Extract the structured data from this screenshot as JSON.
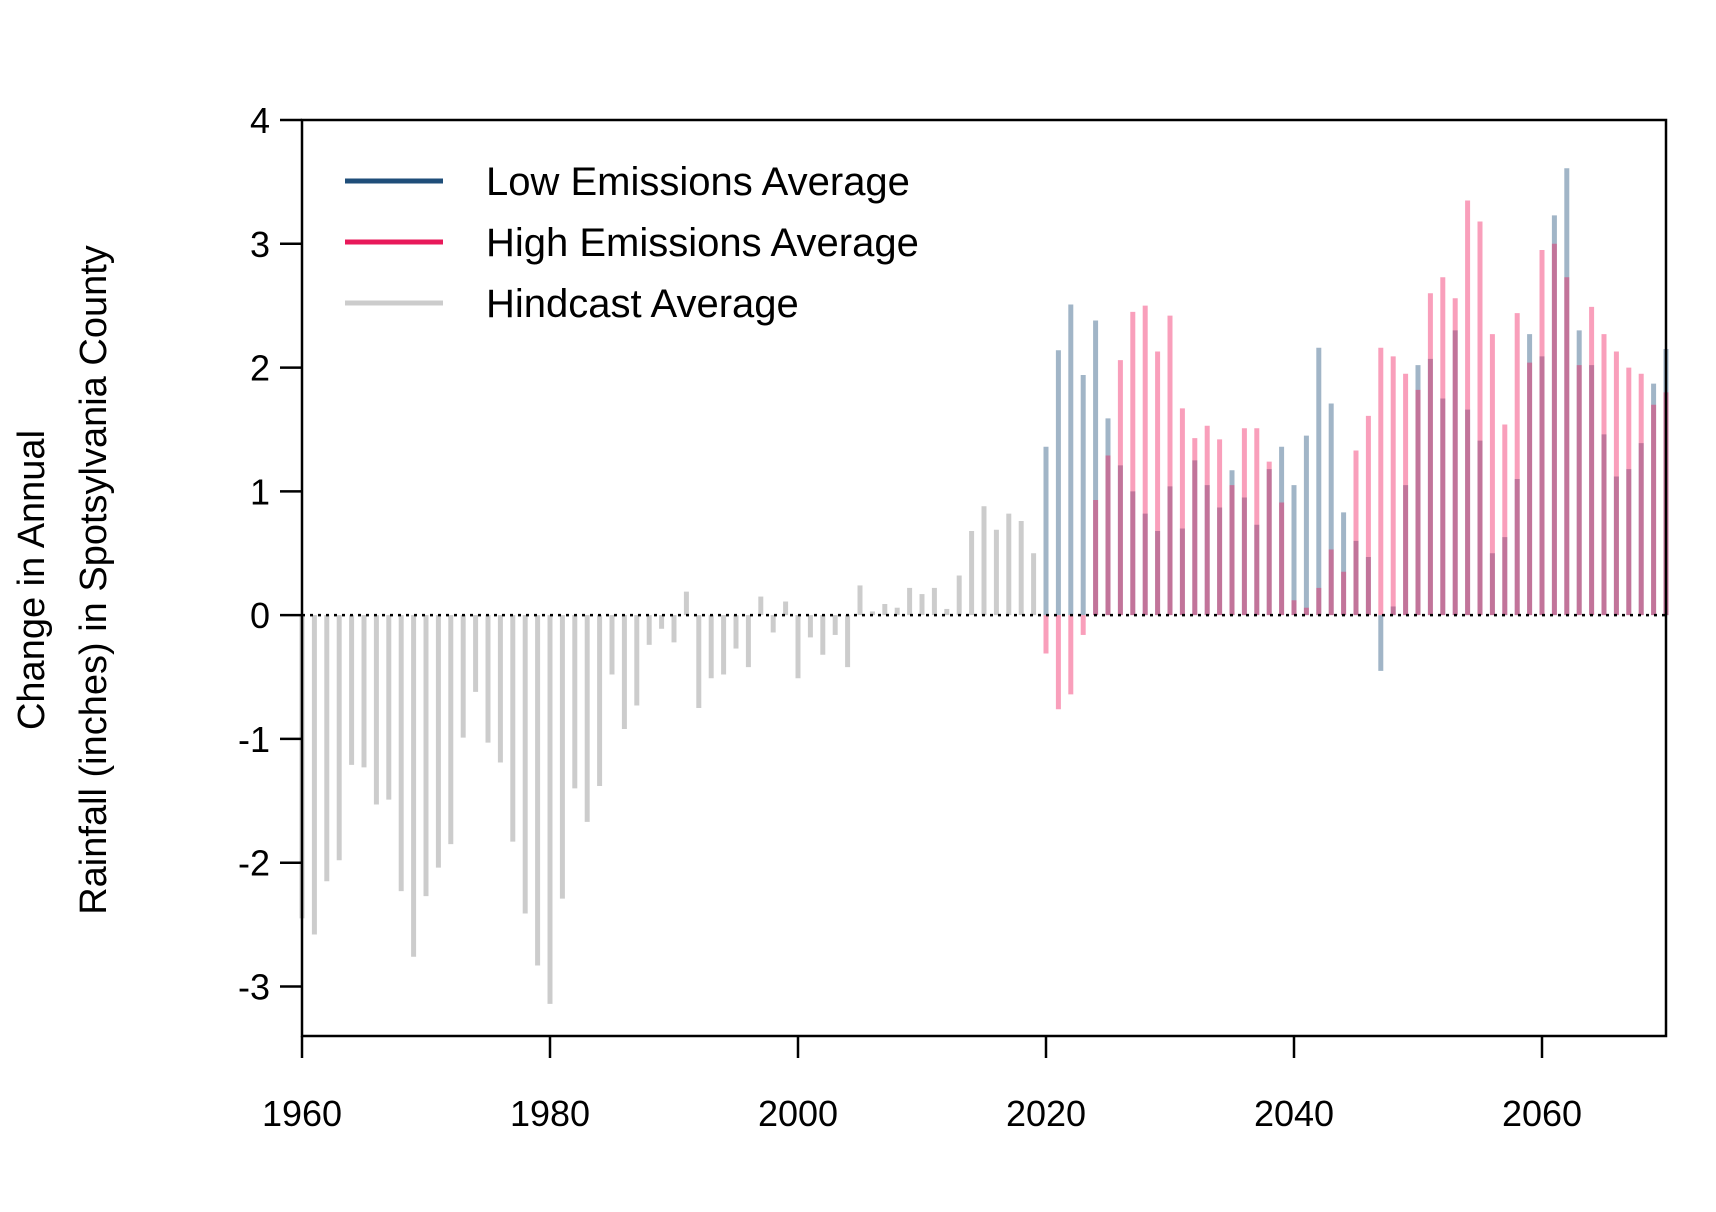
{
  "chart_data": {
    "type": "bar",
    "ylabel_line1": "Change in Annual",
    "ylabel_line2": "Rainfall (inches) in Spotsylvania County",
    "xlim": [
      1960,
      2070
    ],
    "ylim": [
      -3.4,
      4.0
    ],
    "xticks": [
      1960,
      1980,
      2000,
      2020,
      2040,
      2060
    ],
    "yticks": [
      -3,
      -2,
      -1,
      0,
      1,
      2,
      3,
      4
    ],
    "legend_position": "top-left",
    "baseline": 0,
    "series": [
      {
        "name": "Low Emissions Average",
        "color": "#1f4e79",
        "years": [
          2020,
          2021,
          2022,
          2023,
          2024,
          2025,
          2026,
          2027,
          2028,
          2029,
          2030,
          2031,
          2032,
          2033,
          2034,
          2035,
          2036,
          2037,
          2038,
          2039,
          2040,
          2041,
          2042,
          2043,
          2044,
          2045,
          2046,
          2047,
          2048,
          2049,
          2050,
          2051,
          2052,
          2053,
          2054,
          2055,
          2056,
          2057,
          2058,
          2059,
          2060,
          2061,
          2062,
          2063,
          2064,
          2065,
          2066,
          2067,
          2068,
          2069,
          2070
        ],
        "values": [
          1.36,
          2.14,
          2.51,
          1.94,
          2.38,
          1.59,
          1.21,
          1.0,
          0.82,
          0.68,
          1.04,
          0.7,
          1.25,
          1.05,
          0.87,
          1.17,
          0.95,
          0.73,
          1.18,
          1.36,
          1.05,
          1.45,
          2.16,
          1.71,
          0.83,
          0.6,
          0.47,
          -0.45,
          0.07,
          1.05,
          2.02,
          2.07,
          1.75,
          2.3,
          1.66,
          1.41,
          0.5,
          0.63,
          1.1,
          2.27,
          2.09,
          3.23,
          3.61,
          2.3,
          2.02,
          1.46,
          1.12,
          1.18,
          1.39,
          1.87,
          2.15
        ]
      },
      {
        "name": "High Emissions Average",
        "color": "#e8195a",
        "years": [
          2020,
          2021,
          2022,
          2023,
          2024,
          2025,
          2026,
          2027,
          2028,
          2029,
          2030,
          2031,
          2032,
          2033,
          2034,
          2035,
          2036,
          2037,
          2038,
          2039,
          2040,
          2041,
          2042,
          2043,
          2044,
          2045,
          2046,
          2047,
          2048,
          2049,
          2050,
          2051,
          2052,
          2053,
          2054,
          2055,
          2056,
          2057,
          2058,
          2059,
          2060,
          2061,
          2062,
          2063,
          2064,
          2065,
          2066,
          2067,
          2068,
          2069,
          2070
        ],
        "values": [
          -0.31,
          -0.76,
          -0.64,
          -0.16,
          0.93,
          1.29,
          2.06,
          2.45,
          2.5,
          2.13,
          2.42,
          1.67,
          1.43,
          1.53,
          1.42,
          1.05,
          1.51,
          1.51,
          1.24,
          0.91,
          0.12,
          0.06,
          0.22,
          0.53,
          0.35,
          1.33,
          1.61,
          2.16,
          2.09,
          1.95,
          1.82,
          2.6,
          2.73,
          2.56,
          3.35,
          3.18,
          2.27,
          1.54,
          2.44,
          2.04,
          2.95,
          3.0,
          2.73,
          2.02,
          2.49,
          2.27,
          2.13,
          2.0,
          1.95,
          1.7,
          1.8
        ]
      },
      {
        "name": "Hindcast Average",
        "color": "#cccccc",
        "years": [
          1960,
          1961,
          1962,
          1963,
          1964,
          1965,
          1966,
          1967,
          1968,
          1969,
          1970,
          1971,
          1972,
          1973,
          1974,
          1975,
          1976,
          1977,
          1978,
          1979,
          1980,
          1981,
          1982,
          1983,
          1984,
          1985,
          1986,
          1987,
          1988,
          1989,
          1990,
          1991,
          1992,
          1993,
          1994,
          1995,
          1996,
          1997,
          1998,
          1999,
          2000,
          2001,
          2002,
          2003,
          2004,
          2005,
          2006,
          2007,
          2008,
          2009,
          2010,
          2011,
          2012,
          2013,
          2014,
          2015,
          2016,
          2017,
          2018,
          2019
        ],
        "values": [
          -2.45,
          -2.58,
          -2.15,
          -1.98,
          -1.21,
          -1.23,
          -1.53,
          -1.49,
          -2.23,
          -2.76,
          -2.27,
          -2.04,
          -1.85,
          -0.99,
          -0.62,
          -1.03,
          -1.19,
          -1.83,
          -2.41,
          -2.83,
          -3.14,
          -2.29,
          -1.4,
          -1.67,
          -1.38,
          -0.48,
          -0.92,
          -0.73,
          -0.24,
          -0.11,
          -0.22,
          0.19,
          -0.75,
          -0.51,
          -0.48,
          -0.27,
          -0.42,
          0.15,
          -0.14,
          0.11,
          -0.51,
          -0.18,
          -0.32,
          -0.16,
          -0.42,
          0.24,
          0.03,
          0.09,
          0.06,
          0.22,
          0.17,
          0.22,
          0.05,
          0.32,
          0.68,
          0.88,
          0.69,
          0.82,
          0.76,
          0.5
        ]
      }
    ]
  }
}
